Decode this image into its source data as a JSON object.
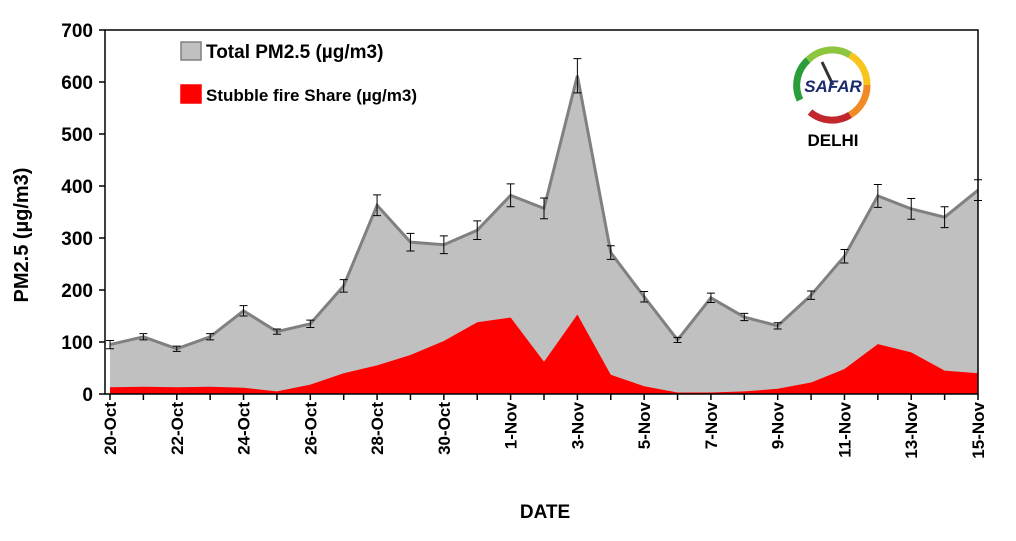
{
  "chart_data": {
    "type": "area",
    "x_label": "DATE",
    "y_label": "PM2.5 (µg/m3)",
    "logo_text": "SAFAR",
    "location": "DELHI",
    "categories": [
      "20-Oct",
      null,
      "22-Oct",
      null,
      "24-Oct",
      null,
      "26-Oct",
      null,
      "28-Oct",
      null,
      "30-Oct",
      null,
      "1-Nov",
      null,
      "3-Nov",
      null,
      "5-Nov",
      null,
      "7-Nov",
      null,
      "9-Nov",
      null,
      "11-Nov",
      null,
      "13-Nov",
      null,
      "15-Nov"
    ],
    "series": [
      {
        "name": "Total PM2.5 (µg/m3)",
        "color": "#c0c0c0",
        "line_color": "#808080",
        "values": [
          95,
          110,
          87,
          110,
          160,
          120,
          135,
          208,
          363,
          292,
          287,
          315,
          382,
          357,
          612,
          272,
          187,
          104,
          185,
          148,
          131,
          190,
          265,
          381,
          356,
          340,
          392
        ],
        "errors": [
          8,
          6,
          5,
          6,
          10,
          5,
          7,
          12,
          20,
          17,
          17,
          18,
          22,
          20,
          33,
          13,
          10,
          5,
          9,
          7,
          6,
          8,
          13,
          22,
          20,
          20,
          20
        ]
      },
      {
        "name": "Stubble fire Share (µg/m3)",
        "color": "#ff0000",
        "values": [
          13,
          14,
          13,
          14,
          12,
          5,
          18,
          40,
          55,
          75,
          102,
          138,
          147,
          62,
          153,
          37,
          15,
          3,
          3,
          5,
          10,
          22,
          48,
          96,
          80,
          45,
          40
        ]
      }
    ],
    "ylim": [
      0,
      700
    ],
    "yticks": [
      0,
      100,
      200,
      300,
      400,
      500,
      600,
      700
    ]
  }
}
